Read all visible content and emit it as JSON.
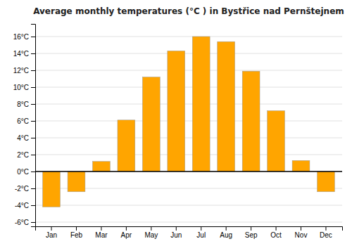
{
  "chart_data": {
    "type": "bar",
    "title": "Average monthly temperatures (°C ) in Bystřice nad Pernštejnem",
    "categories": [
      "Jan",
      "Feb",
      "Mar",
      "Apr",
      "May",
      "Jun",
      "Jul",
      "Aug",
      "Sep",
      "Oct",
      "Nov",
      "Dec"
    ],
    "values": [
      -4.2,
      -2.4,
      1.2,
      6.1,
      11.2,
      14.3,
      16.0,
      15.4,
      11.9,
      7.2,
      1.3,
      -2.4
    ],
    "color": "#FFA500",
    "ylim": [
      -6.5,
      17.5
    ],
    "yticks": [
      {
        "value": -6,
        "label": "-6°C"
      },
      {
        "value": -4,
        "label": "-4°C"
      },
      {
        "value": -2,
        "label": "-2°C"
      },
      {
        "value": 0,
        "label": "0°C"
      },
      {
        "value": 2,
        "label": "2°C"
      },
      {
        "value": 4,
        "label": "4°C"
      },
      {
        "value": 6,
        "label": "6°C"
      },
      {
        "value": 8,
        "label": "8°C"
      },
      {
        "value": 10,
        "label": "10°C"
      },
      {
        "value": 12,
        "label": "12°C"
      },
      {
        "value": 14,
        "label": "14°C"
      },
      {
        "value": 16,
        "label": "16°C"
      }
    ],
    "grid": true
  }
}
